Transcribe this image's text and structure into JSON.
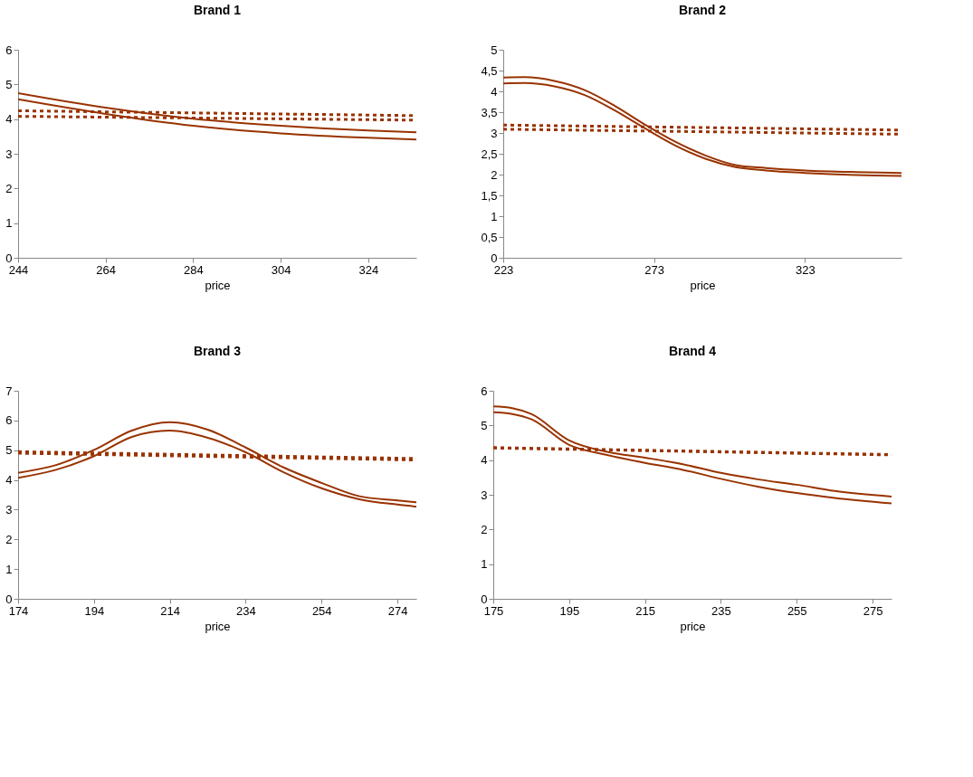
{
  "chart_data": [
    {
      "type": "line",
      "title": "Brand 1",
      "xlabel": "price",
      "xlim": [
        244,
        335
      ],
      "xticks": [
        244,
        264,
        284,
        304,
        324
      ],
      "ylim": [
        0,
        6
      ],
      "yticks": [
        0,
        1,
        2,
        3,
        4,
        5,
        6
      ],
      "grid": false,
      "marker": "none",
      "series": [
        {
          "color": "#993300",
          "line_style": "solid",
          "x": [
            244,
            264,
            284,
            304,
            324,
            335
          ],
          "values": [
            4.75,
            4.33,
            4.01,
            3.81,
            3.67,
            3.62
          ]
        },
        {
          "color": "#993300",
          "line_style": "solid",
          "x": [
            244,
            264,
            284,
            304,
            324,
            335
          ],
          "values": [
            4.57,
            4.15,
            3.81,
            3.59,
            3.46,
            3.41
          ]
        },
        {
          "color": "#993300",
          "line_style": "dotted",
          "x": [
            244,
            335
          ],
          "values": [
            4.24,
            4.1
          ]
        },
        {
          "color": "#993300",
          "line_style": "dotted",
          "x": [
            244,
            335
          ],
          "values": [
            4.08,
            3.97
          ]
        }
      ]
    },
    {
      "type": "line",
      "title": "Brand 2",
      "xlabel": "price",
      "xlim": [
        223,
        355
      ],
      "xticks": [
        223,
        273,
        323
      ],
      "ylim": [
        0,
        5
      ],
      "yticks": [
        0,
        {
          "value": 0.5,
          "label": "0,5"
        },
        1,
        {
          "value": 1.5,
          "label": "1,5"
        },
        2,
        {
          "value": 2.5,
          "label": "2,5"
        },
        3,
        {
          "value": 3.5,
          "label": "3,5"
        },
        4,
        {
          "value": 4.5,
          "label": "4,5"
        },
        5
      ],
      "grid": false,
      "marker": "none",
      "series": [
        {
          "color": "#993300",
          "line_style": "solid",
          "x": [
            223,
            230,
            240,
            250,
            260,
            270,
            280,
            290,
            300,
            310,
            323,
            340,
            355
          ],
          "values": [
            4.33,
            4.34,
            4.25,
            4.03,
            3.65,
            3.2,
            2.79,
            2.46,
            2.23,
            2.16,
            2.1,
            2.06,
            2.04
          ]
        },
        {
          "color": "#993300",
          "line_style": "solid",
          "x": [
            223,
            230,
            240,
            250,
            260,
            270,
            280,
            290,
            300,
            310,
            323,
            340,
            355
          ],
          "values": [
            4.19,
            4.2,
            4.12,
            3.91,
            3.54,
            3.11,
            2.7,
            2.38,
            2.18,
            2.1,
            2.04,
            1.99,
            1.97
          ]
        },
        {
          "color": "#993300",
          "line_style": "dotted",
          "x": [
            223,
            355
          ],
          "values": [
            3.19,
            3.07
          ]
        },
        {
          "color": "#993300",
          "line_style": "dotted",
          "x": [
            223,
            355
          ],
          "values": [
            3.09,
            2.97
          ]
        }
      ]
    },
    {
      "type": "line",
      "title": "Brand 3",
      "xlabel": "price",
      "xlim": [
        174,
        279
      ],
      "xticks": [
        174,
        194,
        214,
        234,
        254,
        274
      ],
      "ylim": [
        0,
        7
      ],
      "yticks": [
        0,
        1,
        2,
        3,
        4,
        5,
        6,
        7
      ],
      "grid": false,
      "marker": "none",
      "series": [
        {
          "color": "#993300",
          "line_style": "solid",
          "x": [
            174,
            184,
            194,
            204,
            214,
            224,
            234,
            244,
            254,
            264,
            274,
            279
          ],
          "values": [
            4.24,
            4.5,
            5.01,
            5.66,
            5.94,
            5.69,
            5.09,
            4.42,
            3.9,
            3.45,
            3.31,
            3.25
          ]
        },
        {
          "color": "#993300",
          "line_style": "solid",
          "x": [
            174,
            184,
            194,
            204,
            214,
            224,
            234,
            244,
            254,
            264,
            274,
            279
          ],
          "values": [
            4.07,
            4.34,
            4.8,
            5.45,
            5.66,
            5.42,
            4.93,
            4.26,
            3.72,
            3.35,
            3.17,
            3.1
          ]
        },
        {
          "color": "#993300",
          "line_style": "dotted",
          "x": [
            174,
            279
          ],
          "values": [
            4.95,
            4.72
          ]
        },
        {
          "color": "#993300",
          "line_style": "dotted",
          "x": [
            174,
            279
          ],
          "values": [
            4.9,
            4.67
          ]
        }
      ]
    },
    {
      "type": "line",
      "title": "Brand 4",
      "xlabel": "price",
      "xlim": [
        175,
        280
      ],
      "xticks": [
        175,
        195,
        215,
        235,
        255,
        275
      ],
      "ylim": [
        0,
        6
      ],
      "yticks": [
        0,
        1,
        2,
        3,
        4,
        5,
        6
      ],
      "grid": false,
      "marker": "none",
      "series": [
        {
          "color": "#993300",
          "line_style": "solid",
          "x": [
            175,
            180,
            185,
            195,
            205,
            215,
            225,
            235,
            245,
            255,
            265,
            280
          ],
          "values": [
            5.55,
            5.5,
            5.33,
            4.57,
            4.24,
            4.07,
            3.88,
            3.63,
            3.44,
            3.29,
            3.11,
            2.95
          ]
        },
        {
          "color": "#993300",
          "line_style": "solid",
          "x": [
            175,
            180,
            185,
            195,
            205,
            215,
            225,
            235,
            245,
            255,
            265,
            280
          ],
          "values": [
            5.38,
            5.33,
            5.18,
            4.44,
            4.15,
            3.92,
            3.72,
            3.46,
            3.23,
            3.05,
            2.91,
            2.75
          ]
        },
        {
          "color": "#993300",
          "line_style": "dotted",
          "x": [
            175,
            280
          ],
          "values": [
            4.35,
            4.15
          ]
        },
        {
          "color": "#993300",
          "line_style": "dotted",
          "x": [
            175,
            280
          ],
          "values": [
            4.36,
            4.16
          ]
        }
      ]
    }
  ]
}
